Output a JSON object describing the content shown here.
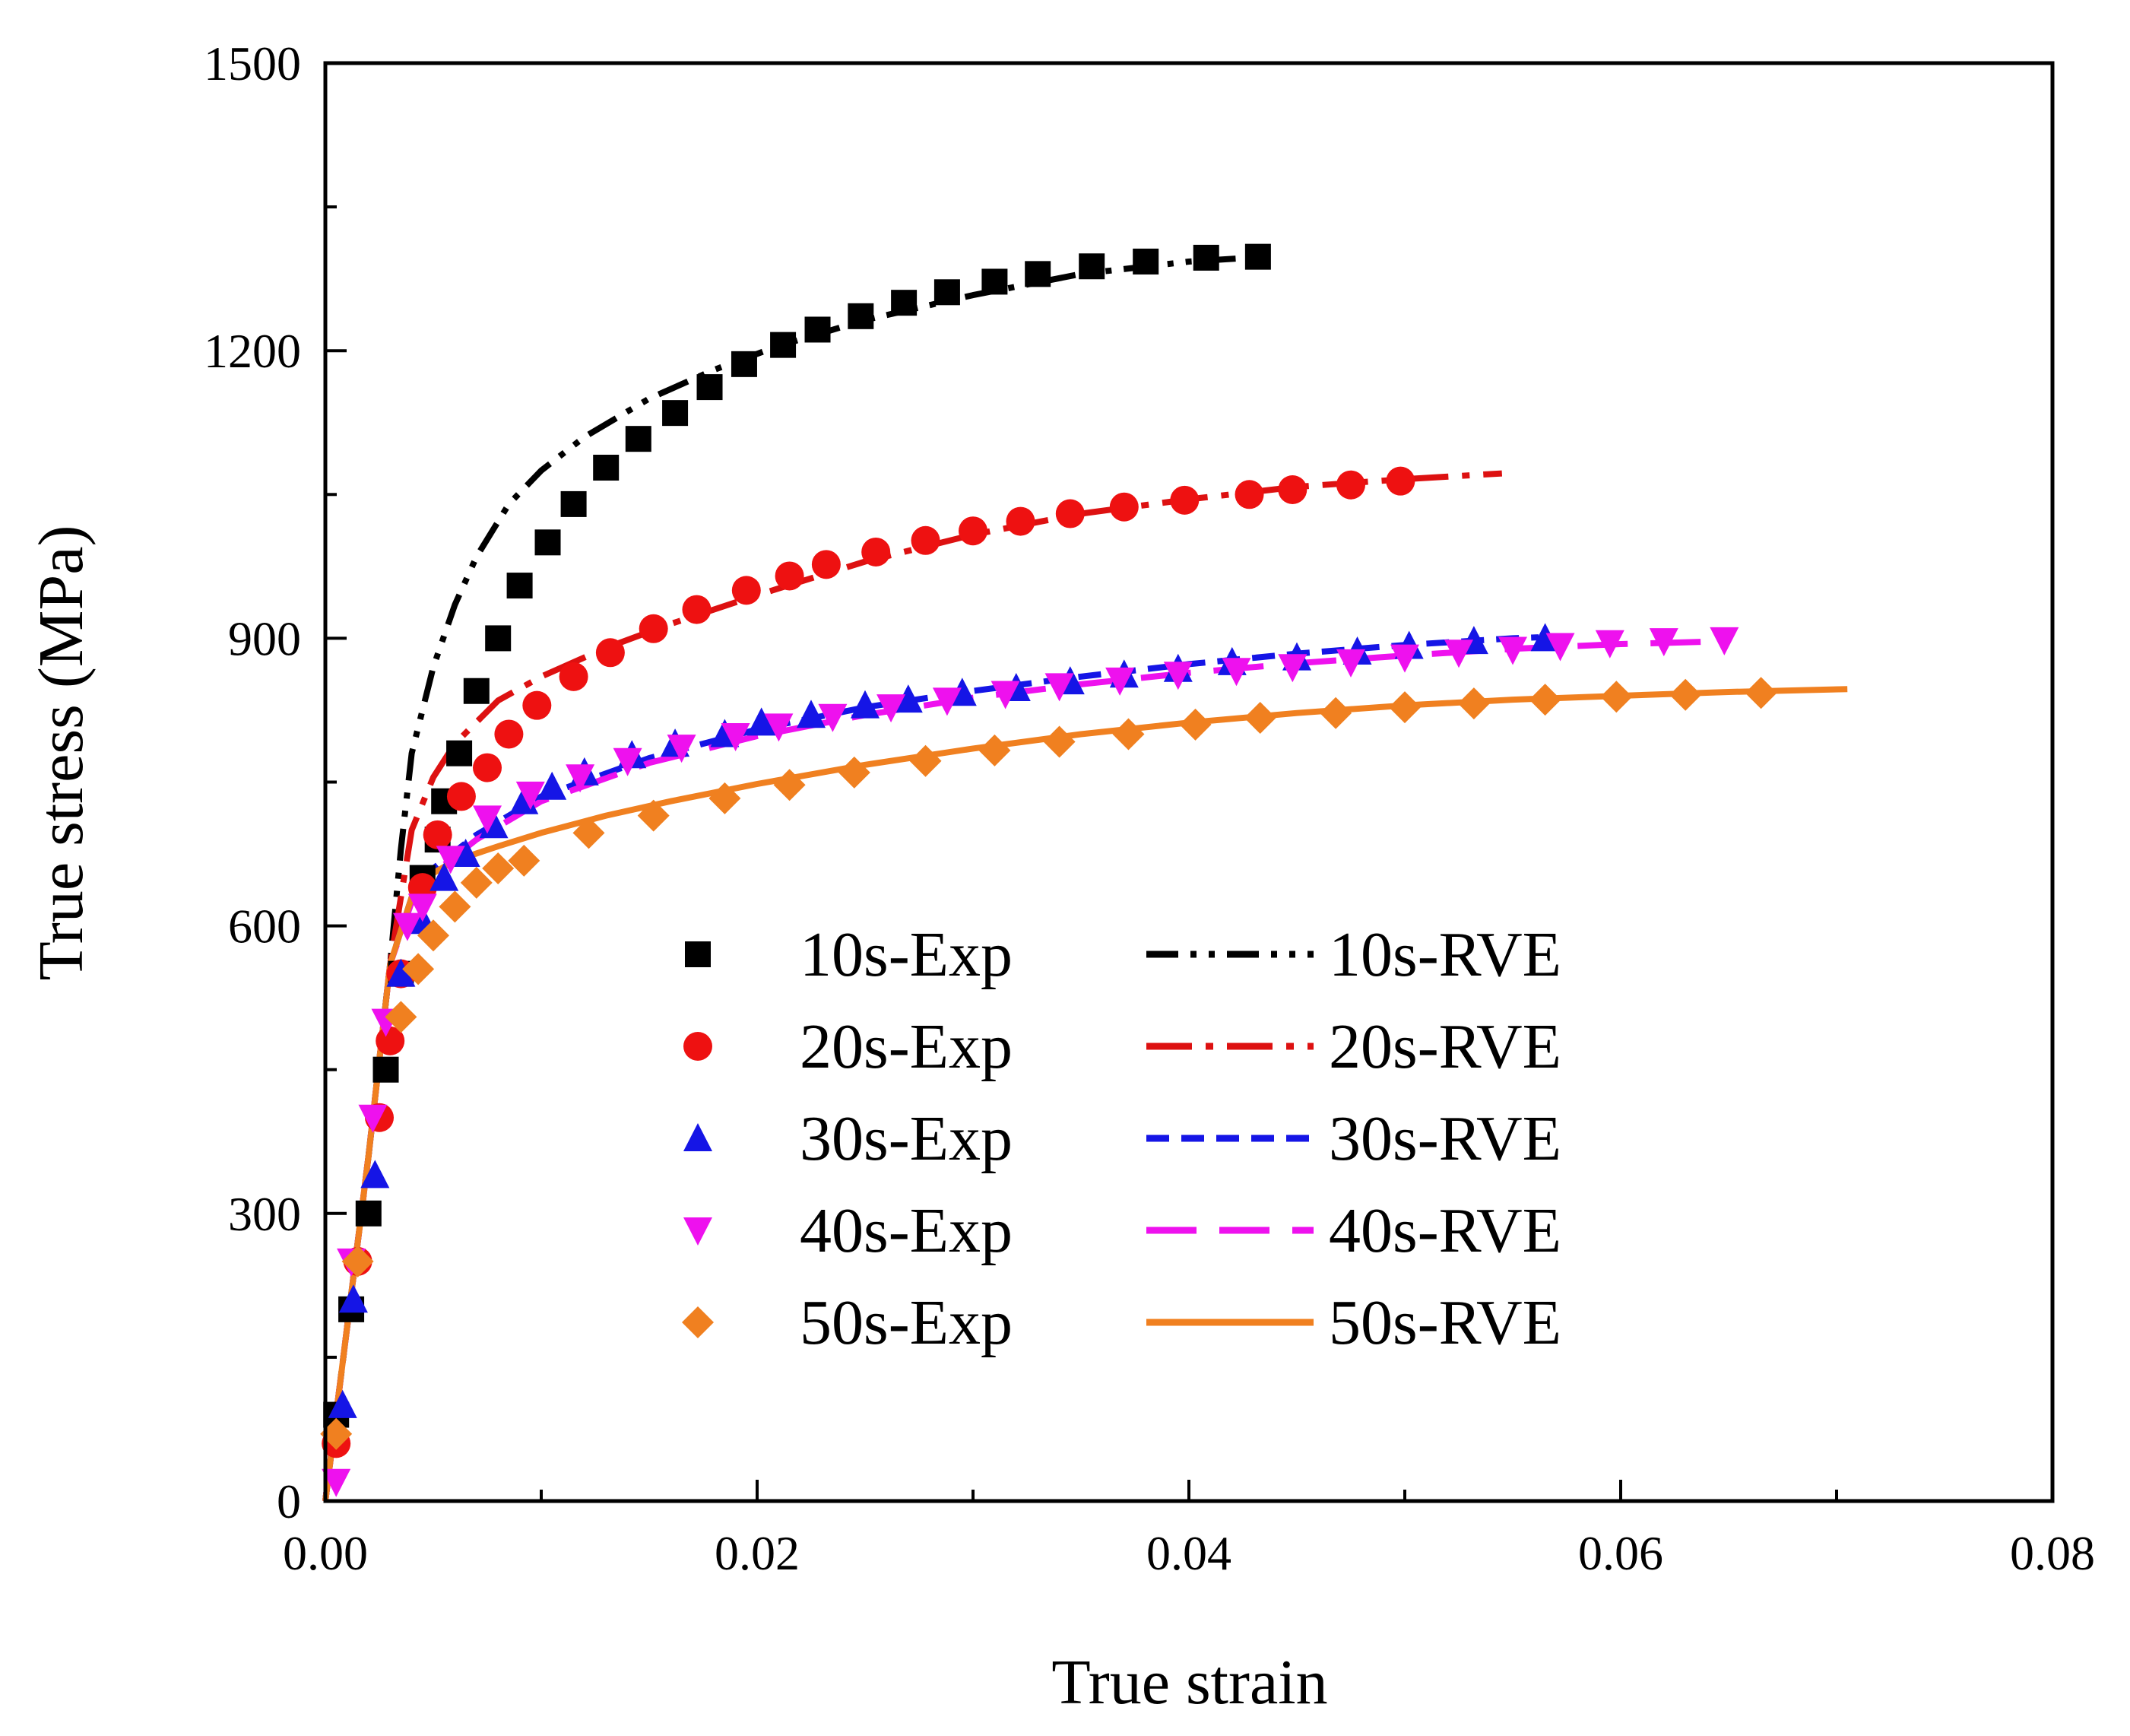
{
  "chart_data": {
    "type": "scatter",
    "title": "",
    "xlabel": "True strain",
    "ylabel": "True stress (MPa)",
    "xlim": [
      0,
      0.08
    ],
    "ylim": [
      0,
      1500
    ],
    "xticks": [
      "0.00",
      "0.02",
      "0.04",
      "0.06",
      "0.08"
    ],
    "yticks": [
      "0",
      "300",
      "600",
      "900",
      "1200",
      "1500"
    ],
    "xtick_values": [
      0,
      0.02,
      0.04,
      0.06,
      0.08
    ],
    "ytick_values": [
      0,
      300,
      600,
      900,
      1200,
      1500
    ],
    "legend_position": "lower-center",
    "series": [
      {
        "name": "10s-Exp",
        "kind": "markers",
        "marker": "square",
        "color": "#000000",
        "points": [
          [
            0.0005,
            90
          ],
          [
            0.0012,
            200
          ],
          [
            0.002,
            300
          ],
          [
            0.0028,
            450
          ],
          [
            0.0035,
            550
          ],
          [
            0.0045,
            650
          ],
          [
            0.0052,
            690
          ],
          [
            0.0055,
            730
          ],
          [
            0.0062,
            780
          ],
          [
            0.007,
            845
          ],
          [
            0.008,
            900
          ],
          [
            0.009,
            955
          ],
          [
            0.0103,
            1000
          ],
          [
            0.0115,
            1040
          ],
          [
            0.013,
            1078
          ],
          [
            0.0145,
            1108
          ],
          [
            0.0162,
            1135
          ],
          [
            0.0178,
            1162
          ],
          [
            0.0194,
            1186
          ],
          [
            0.0212,
            1206
          ],
          [
            0.0228,
            1222
          ],
          [
            0.0248,
            1236
          ],
          [
            0.0268,
            1250
          ],
          [
            0.0288,
            1261
          ],
          [
            0.031,
            1272
          ],
          [
            0.033,
            1280
          ],
          [
            0.0355,
            1288
          ],
          [
            0.038,
            1293
          ],
          [
            0.0408,
            1297
          ],
          [
            0.0432,
            1298
          ]
        ]
      },
      {
        "name": "20s-Exp",
        "kind": "markers",
        "marker": "circle",
        "color": "#ee1111",
        "points": [
          [
            0.0005,
            60
          ],
          [
            0.0015,
            250
          ],
          [
            0.0025,
            400
          ],
          [
            0.003,
            480
          ],
          [
            0.0035,
            550
          ],
          [
            0.0045,
            640
          ],
          [
            0.0052,
            695
          ],
          [
            0.0063,
            735
          ],
          [
            0.0075,
            765
          ],
          [
            0.0085,
            800
          ],
          [
            0.0098,
            830
          ],
          [
            0.0115,
            860
          ],
          [
            0.0132,
            885
          ],
          [
            0.0152,
            910
          ],
          [
            0.0172,
            930
          ],
          [
            0.0195,
            950
          ],
          [
            0.0215,
            965
          ],
          [
            0.0232,
            977
          ],
          [
            0.0255,
            990
          ],
          [
            0.0278,
            1002
          ],
          [
            0.03,
            1012
          ],
          [
            0.0322,
            1022
          ],
          [
            0.0345,
            1030
          ],
          [
            0.037,
            1037
          ],
          [
            0.0398,
            1044
          ],
          [
            0.0428,
            1050
          ],
          [
            0.0448,
            1055
          ],
          [
            0.0475,
            1060
          ],
          [
            0.0498,
            1064
          ]
        ]
      },
      {
        "name": "30s-Exp",
        "kind": "markers",
        "marker": "triangle-up",
        "color": "#1515e6",
        "points": [
          [
            0.0008,
            100
          ],
          [
            0.0013,
            210
          ],
          [
            0.0023,
            340
          ],
          [
            0.0035,
            550
          ],
          [
            0.0045,
            605
          ],
          [
            0.0055,
            650
          ],
          [
            0.0065,
            675
          ],
          [
            0.0078,
            705
          ],
          [
            0.0092,
            730
          ],
          [
            0.0105,
            745
          ],
          [
            0.012,
            760
          ],
          [
            0.0142,
            778
          ],
          [
            0.0162,
            790
          ],
          [
            0.0185,
            800
          ],
          [
            0.0202,
            812
          ],
          [
            0.0225,
            820
          ],
          [
            0.025,
            830
          ],
          [
            0.027,
            836
          ],
          [
            0.0295,
            843
          ],
          [
            0.032,
            848
          ],
          [
            0.0345,
            855
          ],
          [
            0.037,
            862
          ],
          [
            0.0395,
            868
          ],
          [
            0.042,
            875
          ],
          [
            0.045,
            880
          ],
          [
            0.0478,
            886
          ],
          [
            0.0502,
            892
          ],
          [
            0.0532,
            897
          ],
          [
            0.0565,
            900
          ]
        ]
      },
      {
        "name": "40s-Exp",
        "kind": "markers",
        "marker": "triangle-down",
        "color": "#ee11ee",
        "points": [
          [
            0.0005,
            20
          ],
          [
            0.0012,
            250
          ],
          [
            0.0022,
            400
          ],
          [
            0.0028,
            500
          ],
          [
            0.0038,
            600
          ],
          [
            0.0045,
            620
          ],
          [
            0.0058,
            670
          ],
          [
            0.0075,
            712
          ],
          [
            0.0095,
            737
          ],
          [
            0.0118,
            755
          ],
          [
            0.014,
            772
          ],
          [
            0.0165,
            786
          ],
          [
            0.019,
            798
          ],
          [
            0.021,
            808
          ],
          [
            0.0235,
            818
          ],
          [
            0.0262,
            828
          ],
          [
            0.0288,
            835
          ],
          [
            0.0315,
            842
          ],
          [
            0.034,
            850
          ],
          [
            0.0368,
            856
          ],
          [
            0.0395,
            862
          ],
          [
            0.0422,
            866
          ],
          [
            0.0448,
            870
          ],
          [
            0.0475,
            875
          ],
          [
            0.05,
            880
          ],
          [
            0.0525,
            885
          ],
          [
            0.055,
            888
          ],
          [
            0.0572,
            892
          ],
          [
            0.0595,
            895
          ],
          [
            0.062,
            897
          ],
          [
            0.0648,
            898
          ]
        ]
      },
      {
        "name": "50s-Exp",
        "kind": "markers",
        "marker": "diamond",
        "color": "#f08020",
        "points": [
          [
            0.0005,
            70
          ],
          [
            0.0015,
            250
          ],
          [
            0.0035,
            505
          ],
          [
            0.0043,
            555
          ],
          [
            0.005,
            590
          ],
          [
            0.006,
            620
          ],
          [
            0.007,
            645
          ],
          [
            0.008,
            660
          ],
          [
            0.0092,
            668
          ],
          [
            0.0122,
            697
          ],
          [
            0.0152,
            715
          ],
          [
            0.0185,
            733
          ],
          [
            0.0215,
            747
          ],
          [
            0.0245,
            760
          ],
          [
            0.0278,
            772
          ],
          [
            0.031,
            783
          ],
          [
            0.034,
            792
          ],
          [
            0.0372,
            800
          ],
          [
            0.0403,
            810
          ],
          [
            0.0433,
            817
          ],
          [
            0.0468,
            822
          ],
          [
            0.05,
            828
          ],
          [
            0.0532,
            832
          ],
          [
            0.0565,
            836
          ],
          [
            0.0598,
            839
          ],
          [
            0.063,
            841
          ],
          [
            0.0665,
            843
          ]
        ]
      },
      {
        "name": "10s-RVE",
        "kind": "line",
        "dash": "dash-dot-dot",
        "color": "#000000",
        "points": [
          [
            0,
            0
          ],
          [
            0.001,
            180
          ],
          [
            0.002,
            360
          ],
          [
            0.003,
            560
          ],
          [
            0.0035,
            680
          ],
          [
            0.004,
            780
          ],
          [
            0.005,
            870
          ],
          [
            0.006,
            935
          ],
          [
            0.007,
            985
          ],
          [
            0.0085,
            1040
          ],
          [
            0.01,
            1075
          ],
          [
            0.012,
            1110
          ],
          [
            0.015,
            1150
          ],
          [
            0.018,
            1180
          ],
          [
            0.021,
            1205
          ],
          [
            0.025,
            1232
          ],
          [
            0.03,
            1258
          ],
          [
            0.035,
            1280
          ],
          [
            0.04,
            1293
          ],
          [
            0.0435,
            1298
          ]
        ]
      },
      {
        "name": "20s-RVE",
        "kind": "line",
        "dash": "dash-dot",
        "color": "#dd1111",
        "points": [
          [
            0,
            0
          ],
          [
            0.001,
            180
          ],
          [
            0.002,
            360
          ],
          [
            0.003,
            560
          ],
          [
            0.004,
            700
          ],
          [
            0.005,
            755
          ],
          [
            0.006,
            790
          ],
          [
            0.008,
            835
          ],
          [
            0.01,
            860
          ],
          [
            0.013,
            890
          ],
          [
            0.016,
            915
          ],
          [
            0.02,
            945
          ],
          [
            0.025,
            980
          ],
          [
            0.03,
            1008
          ],
          [
            0.035,
            1030
          ],
          [
            0.04,
            1045
          ],
          [
            0.045,
            1058
          ],
          [
            0.05,
            1066
          ],
          [
            0.0545,
            1072
          ]
        ]
      },
      {
        "name": "30s-RVE",
        "kind": "line",
        "dash": "short-dash",
        "color": "#1515e6",
        "points": [
          [
            0,
            0
          ],
          [
            0.001,
            180
          ],
          [
            0.002,
            360
          ],
          [
            0.003,
            560
          ],
          [
            0.004,
            630
          ],
          [
            0.005,
            660
          ],
          [
            0.007,
            695
          ],
          [
            0.01,
            735
          ],
          [
            0.015,
            775
          ],
          [
            0.02,
            805
          ],
          [
            0.025,
            828
          ],
          [
            0.03,
            845
          ],
          [
            0.035,
            860
          ],
          [
            0.04,
            873
          ],
          [
            0.045,
            884
          ],
          [
            0.05,
            893
          ],
          [
            0.055,
            900
          ],
          [
            0.0562,
            901
          ]
        ]
      },
      {
        "name": "40s-RVE",
        "kind": "line",
        "dash": "long-dash",
        "color": "#ee11ee",
        "points": [
          [
            0,
            0
          ],
          [
            0.001,
            180
          ],
          [
            0.002,
            360
          ],
          [
            0.003,
            560
          ],
          [
            0.004,
            625
          ],
          [
            0.005,
            655
          ],
          [
            0.007,
            690
          ],
          [
            0.01,
            730
          ],
          [
            0.015,
            770
          ],
          [
            0.02,
            798
          ],
          [
            0.025,
            820
          ],
          [
            0.03,
            838
          ],
          [
            0.035,
            852
          ],
          [
            0.04,
            864
          ],
          [
            0.045,
            874
          ],
          [
            0.05,
            882
          ],
          [
            0.055,
            889
          ],
          [
            0.06,
            894
          ],
          [
            0.065,
            897
          ]
        ]
      },
      {
        "name": "50s-RVE",
        "kind": "line",
        "dash": "solid",
        "color": "#f08020",
        "points": [
          [
            0,
            0
          ],
          [
            0.001,
            180
          ],
          [
            0.002,
            360
          ],
          [
            0.003,
            560
          ],
          [
            0.004,
            630
          ],
          [
            0.005,
            655
          ],
          [
            0.006,
            668
          ],
          [
            0.008,
            683
          ],
          [
            0.01,
            697
          ],
          [
            0.013,
            715
          ],
          [
            0.016,
            730
          ],
          [
            0.02,
            748
          ],
          [
            0.025,
            768
          ],
          [
            0.03,
            785
          ],
          [
            0.035,
            800
          ],
          [
            0.04,
            812
          ],
          [
            0.045,
            822
          ],
          [
            0.05,
            830
          ],
          [
            0.055,
            836
          ],
          [
            0.06,
            840
          ],
          [
            0.065,
            844
          ],
          [
            0.0705,
            847
          ]
        ]
      }
    ]
  }
}
